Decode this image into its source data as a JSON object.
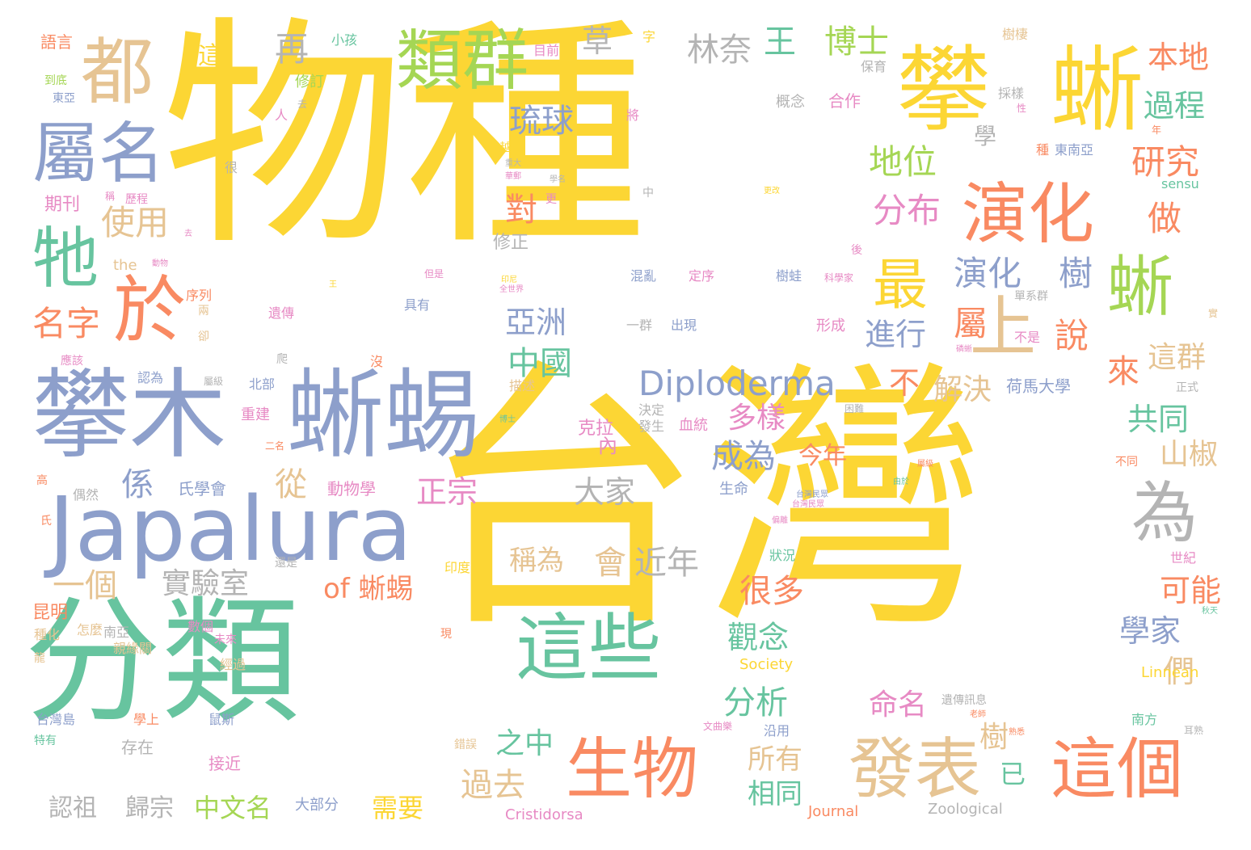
{
  "palette": {
    "yellow": "#fcd634",
    "orange": "#f98a62",
    "blue": "#8d9fcb",
    "green": "#67c49f",
    "lime": "#a5d654",
    "tan": "#e6c493",
    "pink": "#e78ac4",
    "gray": "#b4b4b4"
  },
  "words": {
    "w001": "物種",
    "w002": "台灣",
    "w003": "分類",
    "w004": "攀木",
    "w005": "蜥蜴",
    "w006": "Japalura",
    "w007": "攀",
    "w008": "蜥",
    "w009": "類群",
    "w010": "都",
    "w011": "屬名",
    "w012": "牠",
    "w013": "於",
    "w014": "演化",
    "w015": "蜥",
    "w016": "上",
    "w017": "最",
    "w018": "這些",
    "w019": "生物",
    "w020": "發表",
    "w021": "這個",
    "w022": "為",
    "w023": "Diploderma",
    "w024": "地位",
    "w025": "研究",
    "w026": "本地",
    "w027": "過程",
    "w028": "林奈",
    "w029": "博士",
    "w030": "王",
    "w031": "草",
    "w032": "再",
    "w033": "琉球",
    "w034": "使用",
    "w035": "名字",
    "w036": "分布",
    "w037": "演化",
    "w038": "樹",
    "w039": "做",
    "w040": "屬",
    "w041": "說",
    "w042": "進行",
    "w043": "亞洲",
    "w044": "中國",
    "w045": "對",
    "w046": "來",
    "w047": "這群",
    "w048": "係",
    "w049": "不",
    "w050": "解決",
    "w051": "共同",
    "w052": "山椒",
    "w053": "多樣",
    "w054": "成為",
    "w055": "從",
    "w056": "正宗",
    "w057": "大家",
    "w058": "今年",
    "w059": "一個",
    "w060": "of 蜥蜴",
    "w061": "稱為",
    "w062": "會",
    "w063": "近年",
    "w064": "實驗室",
    "w065": "很多",
    "w066": "可能",
    "w067": "觀念",
    "w068": "學家",
    "w069": "們",
    "w070": "分析",
    "w071": "命名",
    "w072": "之中",
    "w073": "樹",
    "w074": "已",
    "w075": "過去",
    "w076": "所有",
    "w077": "相同",
    "w078": "中文名",
    "w079": "需要",
    "w080": "認祖",
    "w081": "歸宗",
    "w082": "內",
    "w083": "克拉",
    "w084": "動物學",
    "w085": "氏學會",
    "w086": "學",
    "w087": "期刊",
    "w088": "語言",
    "w089": "這",
    "w090": "目前",
    "w091": "小孩",
    "w092": "修訂",
    "w093": "字",
    "w094": "概念",
    "w095": "合作",
    "w096": "保育",
    "w097": "採樣",
    "w098": "樹棲",
    "w099": "東南亞",
    "w100": "種",
    "w101": "sensu",
    "w102": "修正",
    "w103": "混亂",
    "w104": "定序",
    "w105": "樹蛙",
    "w106": "科學家",
    "w107": "單系群",
    "w108": "出現",
    "w109": "一群",
    "w110": "形成",
    "w111": "不是",
    "w112": "正式",
    "w113": "荷馬大學",
    "w114": "血統",
    "w115": "決定",
    "w116": "發生",
    "w117": "重建",
    "w118": "描述",
    "w119": "生命",
    "w120": "狀況",
    "w121": "世紀",
    "w122": "不同",
    "w123": "印度",
    "w124": "還是",
    "w125": "昆明",
    "w126": "種化",
    "w127": "南亞",
    "w128": "數個",
    "w129": "親緣關",
    "w130": "未來",
    "w131": "經過",
    "w132": "Society",
    "w133": "Linnean",
    "w134": "遺傳訊息",
    "w135": "南方",
    "w136": "台灣島",
    "w137": "學上",
    "w138": "鼠斯",
    "w139": "特有",
    "w140": "存在",
    "w141": "接近",
    "w142": "錯誤",
    "w143": "文曲樂",
    "w144": "沿用",
    "w145": "老師",
    "w146": "耳熟",
    "w147": "大部分",
    "w148": "Journal",
    "w149": "Zoological",
    "w150": "Cristidorsa",
    "w151": "北部",
    "w152": "遺傳",
    "w153": "具有",
    "w154": "序列",
    "w155": "認為",
    "w156": "屬級",
    "w157": "應該",
    "w158": "偶然",
    "w159": "二名",
    "w160": "高",
    "w161": "氏",
    "w162": "東亞",
    "w163": "到底",
    "w164": "人",
    "w165": "去",
    "w166": "將",
    "w167": "越",
    "w168": "更",
    "w169": "中",
    "w170": "很",
    "w171": "稱",
    "w172": "歷程",
    "w173": "the",
    "w174": "動物",
    "w175": "但是",
    "w176": "全世界",
    "w177": "兩",
    "w178": "卻",
    "w179": "沒",
    "w180": "困難",
    "w181": "後",
    "w182": "實",
    "w183": "秋天",
    "w184": "台灣民眾",
    "w185": "磷蜥",
    "w186": "性",
    "w187": "年",
    "w188": "更改",
    "w189": "屬級",
    "w190": "由於",
    "w191": "王",
    "w192": "重大",
    "w193": "華郵",
    "w194": "學名",
    "w195": "去",
    "w196": "印尼",
    "w197": "現",
    "w198": "龍",
    "w199": "怎麼",
    "w200": "爬",
    "w201": "熟悉",
    "w202": "博士",
    "w203": "台灣民眾",
    "w204": "偏離"
  }
}
